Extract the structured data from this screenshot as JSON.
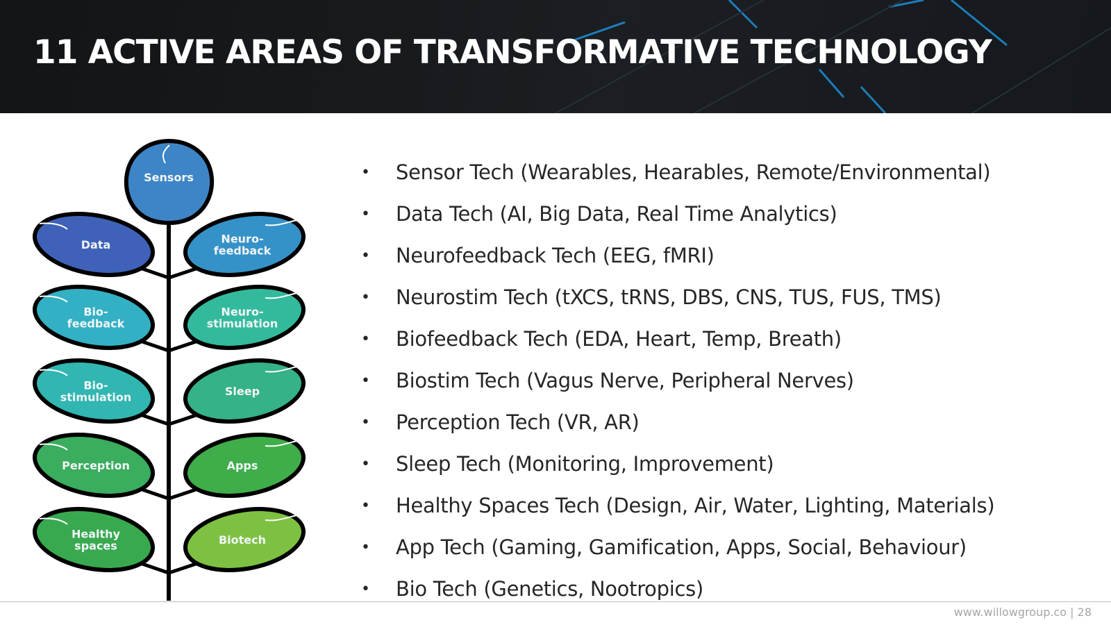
{
  "slide": {
    "title": "11 ACTIVE AREAS OF TRANSFORMATIVE TECHNOLOGY",
    "page_number": "28",
    "footer_url": "www.willowgroup.co",
    "footer_separator": "|"
  },
  "diagram": {
    "top": {
      "lines": [
        "Sensors"
      ],
      "color": "#3d85c6"
    },
    "leaves": [
      {
        "lines": [
          "Data"
        ],
        "color": "#3f62b8",
        "side": "left"
      },
      {
        "lines": [
          "Neuro-",
          "feedback"
        ],
        "color": "#3592c8",
        "side": "right"
      },
      {
        "lines": [
          "Bio-",
          "feedback"
        ],
        "color": "#33b0c4",
        "side": "left"
      },
      {
        "lines": [
          "Neuro-",
          "stimulation"
        ],
        "color": "#33ba9c",
        "side": "right"
      },
      {
        "lines": [
          "Bio-",
          "stimulation"
        ],
        "color": "#31b6b2",
        "side": "left"
      },
      {
        "lines": [
          "Sleep"
        ],
        "color": "#35b287",
        "side": "right"
      },
      {
        "lines": [
          "Perception"
        ],
        "color": "#3aad5e",
        "side": "left"
      },
      {
        "lines": [
          "Apps"
        ],
        "color": "#3fae4a",
        "side": "right"
      },
      {
        "lines": [
          "Healthy",
          "spaces"
        ],
        "color": "#39a94f",
        "side": "left"
      },
      {
        "lines": [
          "Biotech"
        ],
        "color": "#7dc142",
        "side": "right"
      }
    ]
  },
  "bullets": [
    "Sensor Tech (Wearables, Hearables, Remote/Environmental)",
    "Data Tech (AI, Big Data, Real Time Analytics)",
    "Neurofeedback Tech (EEG, fMRI)",
    "Neurostim Tech (tXCS, tRNS, DBS, CNS, TUS, FUS, TMS)",
    "Biofeedback Tech (EDA, Heart, Temp, Breath)",
    "Biostim Tech (Vagus Nerve, Peripheral Nerves)",
    "Perception Tech (VR, AR)",
    "Sleep Tech (Monitoring, Improvement)",
    "Healthy Spaces Tech (Design, Air, Water, Lighting, Materials)",
    "App Tech (Gaming, Gamification, Apps, Social, Behaviour)",
    "Bio Tech (Genetics, Nootropics)"
  ],
  "bullet_symbol": "•"
}
